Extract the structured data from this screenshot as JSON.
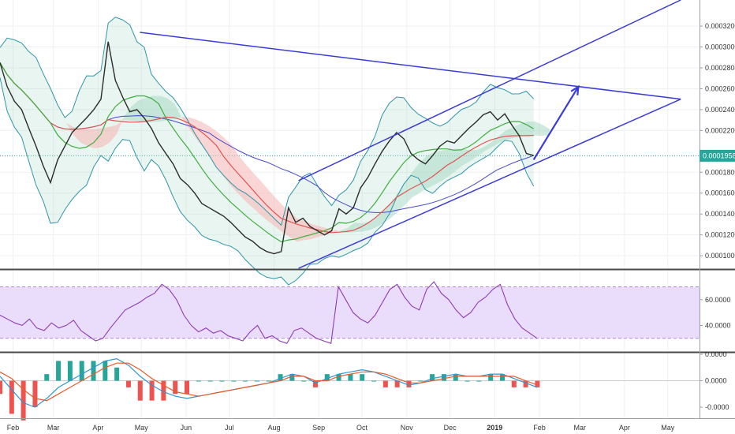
{
  "chart_data": [
    {
      "type": "line",
      "panel": "price",
      "y_ticks": [
        "0.00032000",
        "0.00030000",
        "0.00028000",
        "0.00026000",
        "0.00024000",
        "0.00022000",
        "0.00018000",
        "0.00016000",
        "0.00014000",
        "0.00012000",
        "0.00010000"
      ],
      "y_tick_values": [
        0.00032,
        0.0003,
        0.00028,
        0.00026,
        0.00024,
        0.00022,
        0.00018,
        0.00016,
        0.00014,
        0.00012,
        0.0001
      ],
      "ylim": [
        8.8e-05,
        0.000345
      ],
      "current_price_label": "0.0001958",
      "current_price": 0.0001958,
      "grid": true,
      "series": [
        {
          "role": "close",
          "values": [
            0.000285,
            0.000262,
            0.000248,
            0.00024,
            0.000222,
            0.000205,
            0.000186,
            0.00017,
            0.000192,
            0.000205,
            0.000218,
            0.000225,
            0.000232,
            0.00024,
            0.00025,
            0.000305,
            0.000268,
            0.000252,
            0.000238,
            0.00024,
            0.000232,
            0.000222,
            0.000208,
            0.000198,
            0.000188,
            0.000174,
            0.000168,
            0.00016,
            0.00015,
            0.000146,
            0.000142,
            0.000138,
            0.000132,
            0.000125,
            0.000118,
            0.000114,
            0.000108,
            0.000104,
            0.000102,
            0.000104,
            0.000146,
            0.000132,
            0.000136,
            0.000128,
            0.000124,
            0.00012,
            0.000124,
            0.000145,
            0.00014,
            0.000146,
            0.000165,
            0.000175,
            0.000188,
            0.0002,
            0.00021,
            0.000218,
            0.000212,
            0.000198,
            0.000192,
            0.000188,
            0.000196,
            0.000205,
            0.00021,
            0.000208,
            0.000215,
            0.000222,
            0.000228,
            0.000235,
            0.000238,
            0.00023,
            0.000236,
            0.000225,
            0.000215,
            0.000198,
            0.000196
          ],
          "x_start": "2018-01-23",
          "step_days": 5
        }
      ],
      "drawings": [
        {
          "name": "upper-channel-line",
          "points": [
            [
              0.000172,
              "2018-08-18"
            ],
            [
              0.000345,
              "2019-05-10"
            ]
          ]
        },
        {
          "name": "lower-channel-line",
          "points": [
            [
              8.8e-05,
              "2018-08-18"
            ],
            [
              0.00025,
              "2019-05-10"
            ]
          ]
        },
        {
          "name": "descending-resistance-line",
          "points": [
            [
              0.000314,
              "2018-04-30"
            ],
            [
              0.00025,
              "2019-05-10"
            ]
          ]
        },
        {
          "name": "projection-arrow",
          "points": [
            [
              0.000192,
              "2019-01-28"
            ],
            [
              0.000262,
              "2019-02-28"
            ]
          ]
        }
      ]
    },
    {
      "type": "line",
      "panel": "oscillator",
      "y_ticks": [
        "60.0000",
        "40.0000"
      ],
      "y_tick_values": [
        60,
        40
      ],
      "ylim": [
        20,
        82
      ],
      "bands": [
        70,
        30
      ],
      "values": [
        48,
        45,
        42,
        40,
        45,
        38,
        36,
        42,
        38,
        40,
        44,
        36,
        32,
        28,
        30,
        38,
        45,
        52,
        55,
        58,
        62,
        65,
        72,
        68,
        60,
        48,
        40,
        35,
        38,
        34,
        36,
        32,
        30,
        28,
        35,
        40,
        30,
        32,
        28,
        26,
        36,
        38,
        34,
        30,
        28,
        26,
        70,
        60,
        50,
        45,
        42,
        48,
        58,
        68,
        72,
        62,
        55,
        52,
        68,
        74,
        65,
        60,
        52,
        46,
        50,
        58,
        62,
        68,
        72,
        56,
        45,
        38,
        34,
        30
      ]
    },
    {
      "type": "line",
      "panel": "momentum",
      "y_ticks": [
        "0.0000",
        "0.0000",
        "-0.0000"
      ],
      "y_tick_values": [
        1.2e-05,
        0.0,
        -1.2e-05
      ],
      "ylim": [
        -1.7e-05,
        1.2e-05
      ],
      "series": [
        {
          "role": "macd",
          "values": [
            2e-06,
            -4e-06,
            -1e-05,
            -1.2e-05,
            -8e-06,
            -3e-06,
            0.0,
            3e-06,
            6e-06,
            9e-06,
            1e-05,
            7e-06,
            2e-06,
            -2e-06,
            -5e-06,
            -7e-06,
            -8e-06,
            -7e-06,
            -6e-06,
            -5e-06,
            -4e-06,
            -3e-06,
            -2e-06,
            -1e-06,
            1e-06,
            3e-06,
            2e-06,
            -1e-06,
            1e-06,
            3e-06,
            4e-06,
            5e-06,
            4e-06,
            2e-06,
            0.0,
            -2e-06,
            -1e-06,
            1e-06,
            2e-06,
            3e-06,
            2e-06,
            2e-06,
            3e-06,
            3e-06,
            1e-06,
            -1e-06,
            -3e-06
          ]
        },
        {
          "role": "signal",
          "values": [
            4e-06,
            1e-06,
            -4e-06,
            -8e-06,
            -9e-06,
            -6e-06,
            -3e-06,
            0.0,
            3e-06,
            6e-06,
            8e-06,
            8e-06,
            5e-06,
            1e-06,
            -2e-06,
            -5e-06,
            -6e-06,
            -7e-06,
            -6e-06,
            -5e-06,
            -4e-06,
            -3e-06,
            -2e-06,
            -1e-06,
            0.0,
            2e-06,
            2e-06,
            0.0,
            0.0,
            2e-06,
            3e-06,
            4e-06,
            4e-06,
            3e-06,
            1e-06,
            -1e-06,
            -1e-06,
            0.0,
            1e-06,
            2e-06,
            2e-06,
            2e-06,
            2e-06,
            2e-06,
            2e-06,
            0.0,
            -2e-06
          ]
        }
      ]
    }
  ],
  "x_axis": {
    "labels": [
      "Feb",
      "Mar",
      "Apr",
      "May",
      "Jun",
      "Jul",
      "Aug",
      "Sep",
      "Oct",
      "Nov",
      "Dec",
      "2019",
      "Feb",
      "Mar",
      "Apr",
      "May"
    ],
    "bold_labels": [
      "2019"
    ]
  },
  "colors": {
    "price_line": "#2b2b2b",
    "channel": "#3b3bd6",
    "ma_red": "#e35252",
    "ma_green": "#3fae3f",
    "ma_blue": "#4a4acb",
    "bollinger": "#2f95a8",
    "cloud_up": "#a7d8c4",
    "cloud_down": "#f6b3b3",
    "oscillator_line": "#8e3cb4",
    "oscillator_band": "#eadcfb",
    "macd_line": "#2f95d1",
    "signal_line": "#e85a2a",
    "hist_pos": "#26a69a",
    "hist_neg": "#ef5350",
    "current_price_badge": "#26a69a"
  }
}
